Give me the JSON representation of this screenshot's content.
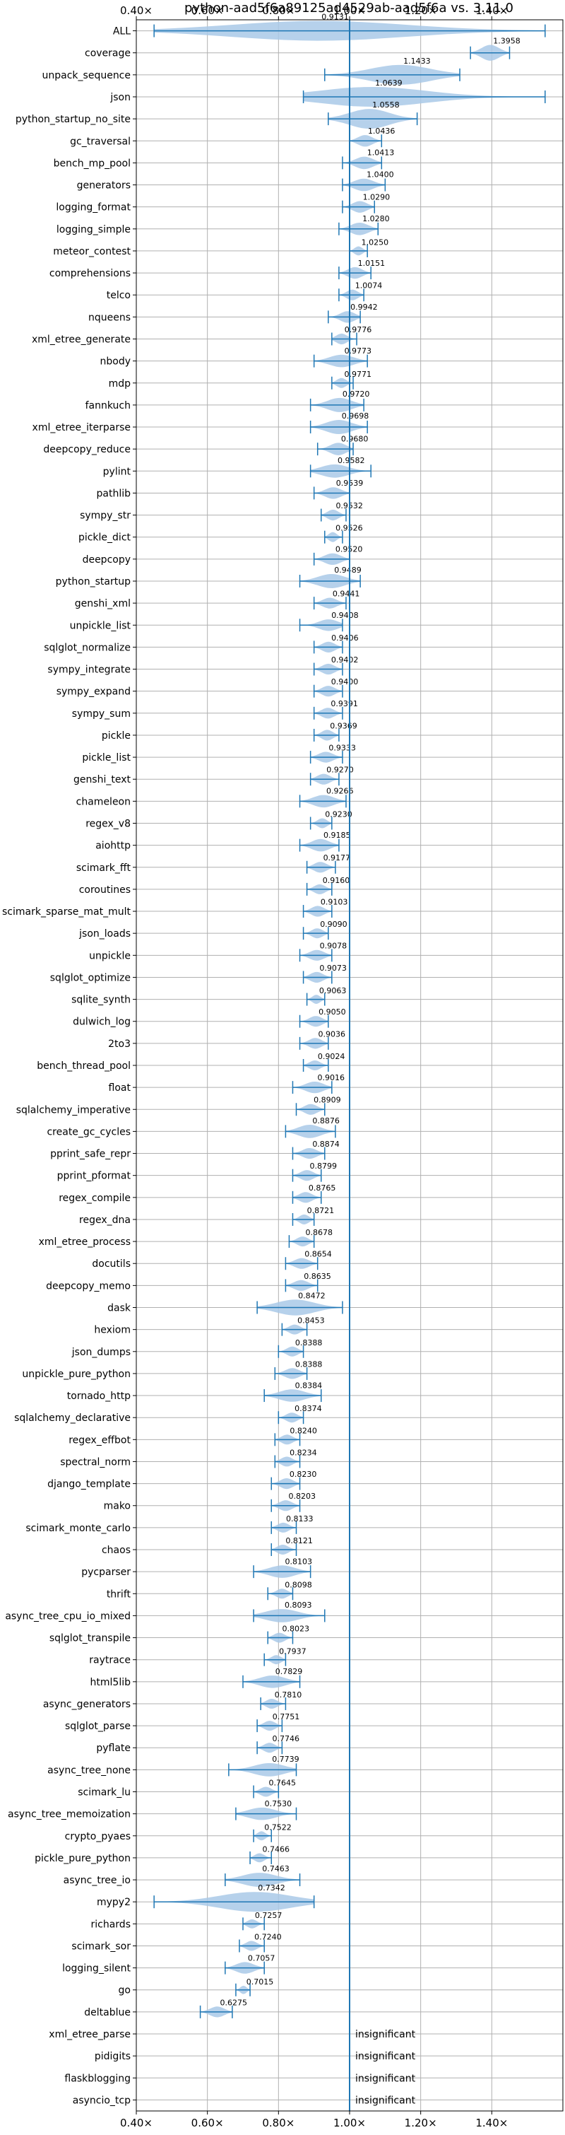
{
  "chart_data": {
    "type": "violin",
    "title": "python-aad5f6a89125ad4529ab-aad5f6a vs. 3.11.0",
    "x_ticks": [
      "0.40×",
      "0.60×",
      "0.80×",
      "1.00×",
      "1.20×",
      "1.40×"
    ],
    "x_tick_values": [
      0.4,
      0.6,
      0.8,
      1.0,
      1.2,
      1.4
    ],
    "xlim": [
      0.4,
      1.6
    ],
    "reference_line": 1.0,
    "grid": true,
    "colors": {
      "violin": "#a9c9e8",
      "line": "#1f77b4",
      "grid": "#b0b0b0"
    },
    "insignificant_text": "insignificant",
    "rows": [
      {
        "name": "ALL",
        "value": 0.9131,
        "min": 0.45,
        "max": 1.55,
        "width": 0.55
      },
      {
        "name": "coverage",
        "value": 1.3958,
        "min": 1.34,
        "max": 1.45,
        "width": 0.12
      },
      {
        "name": "unpack_sequence",
        "value": 1.1433,
        "min": 0.93,
        "max": 1.31,
        "width": 0.3
      },
      {
        "name": "json",
        "value": 1.0639,
        "min": 0.87,
        "max": 1.55,
        "width": 0.35
      },
      {
        "name": "python_startup_no_site",
        "value": 1.0558,
        "min": 0.94,
        "max": 1.19,
        "width": 0.2
      },
      {
        "name": "gc_traversal",
        "value": 1.0436,
        "min": 1.0,
        "max": 1.09,
        "width": 0.07
      },
      {
        "name": "bench_mp_pool",
        "value": 1.0413,
        "min": 0.98,
        "max": 1.09,
        "width": 0.08
      },
      {
        "name": "generators",
        "value": 1.04,
        "min": 0.98,
        "max": 1.1,
        "width": 0.08
      },
      {
        "name": "logging_format",
        "value": 1.029,
        "min": 0.98,
        "max": 1.07,
        "width": 0.07
      },
      {
        "name": "logging_simple",
        "value": 1.028,
        "min": 0.97,
        "max": 1.08,
        "width": 0.08
      },
      {
        "name": "meteor_contest",
        "value": 1.025,
        "min": 1.0,
        "max": 1.05,
        "width": 0.04
      },
      {
        "name": "comprehensions",
        "value": 1.0151,
        "min": 0.97,
        "max": 1.06,
        "width": 0.07
      },
      {
        "name": "telco",
        "value": 1.0074,
        "min": 0.97,
        "max": 1.04,
        "width": 0.06
      },
      {
        "name": "nqueens",
        "value": 0.9942,
        "min": 0.94,
        "max": 1.03,
        "width": 0.07
      },
      {
        "name": "xml_etree_generate",
        "value": 0.9776,
        "min": 0.95,
        "max": 1.02,
        "width": 0.06
      },
      {
        "name": "nbody",
        "value": 0.9773,
        "min": 0.9,
        "max": 1.05,
        "width": 0.08
      },
      {
        "name": "mdp",
        "value": 0.9771,
        "min": 0.95,
        "max": 1.01,
        "width": 0.05
      },
      {
        "name": "fannkuch",
        "value": 0.972,
        "min": 0.89,
        "max": 1.04,
        "width": 0.1
      },
      {
        "name": "xml_etree_iterparse",
        "value": 0.9698,
        "min": 0.89,
        "max": 1.05,
        "width": 0.1
      },
      {
        "name": "deepcopy_reduce",
        "value": 0.968,
        "min": 0.91,
        "max": 1.01,
        "width": 0.08
      },
      {
        "name": "pylint",
        "value": 0.9582,
        "min": 0.89,
        "max": 1.06,
        "width": 0.09
      },
      {
        "name": "pathlib",
        "value": 0.9539,
        "min": 0.9,
        "max": 1.0,
        "width": 0.07
      },
      {
        "name": "sympy_str",
        "value": 0.9532,
        "min": 0.92,
        "max": 0.99,
        "width": 0.06
      },
      {
        "name": "pickle_dict",
        "value": 0.9526,
        "min": 0.93,
        "max": 0.98,
        "width": 0.05
      },
      {
        "name": "deepcopy",
        "value": 0.952,
        "min": 0.9,
        "max": 1.0,
        "width": 0.07
      },
      {
        "name": "python_startup",
        "value": 0.9489,
        "min": 0.86,
        "max": 1.03,
        "width": 0.1
      },
      {
        "name": "genshi_xml",
        "value": 0.9441,
        "min": 0.9,
        "max": 0.99,
        "width": 0.06
      },
      {
        "name": "unpickle_list",
        "value": 0.9408,
        "min": 0.86,
        "max": 0.98,
        "width": 0.07
      },
      {
        "name": "sqlglot_normalize",
        "value": 0.9406,
        "min": 0.9,
        "max": 0.98,
        "width": 0.06
      },
      {
        "name": "sympy_integrate",
        "value": 0.9402,
        "min": 0.9,
        "max": 0.98,
        "width": 0.06
      },
      {
        "name": "sympy_expand",
        "value": 0.94,
        "min": 0.9,
        "max": 0.98,
        "width": 0.06
      },
      {
        "name": "sympy_sum",
        "value": 0.9391,
        "min": 0.9,
        "max": 0.98,
        "width": 0.06
      },
      {
        "name": "pickle",
        "value": 0.9369,
        "min": 0.9,
        "max": 0.97,
        "width": 0.06
      },
      {
        "name": "pickle_list",
        "value": 0.9333,
        "min": 0.89,
        "max": 0.98,
        "width": 0.06
      },
      {
        "name": "genshi_text",
        "value": 0.927,
        "min": 0.89,
        "max": 0.97,
        "width": 0.06
      },
      {
        "name": "chameleon",
        "value": 0.9266,
        "min": 0.86,
        "max": 0.99,
        "width": 0.08
      },
      {
        "name": "regex_v8",
        "value": 0.923,
        "min": 0.89,
        "max": 0.95,
        "width": 0.05
      },
      {
        "name": "aiohttp",
        "value": 0.9185,
        "min": 0.86,
        "max": 0.97,
        "width": 0.08
      },
      {
        "name": "scimark_fft",
        "value": 0.9177,
        "min": 0.88,
        "max": 0.96,
        "width": 0.06
      },
      {
        "name": "coroutines",
        "value": 0.916,
        "min": 0.88,
        "max": 0.95,
        "width": 0.05
      },
      {
        "name": "scimark_sparse_mat_mult",
        "value": 0.9103,
        "min": 0.87,
        "max": 0.95,
        "width": 0.06
      },
      {
        "name": "json_loads",
        "value": 0.909,
        "min": 0.87,
        "max": 0.94,
        "width": 0.05
      },
      {
        "name": "unpickle",
        "value": 0.9078,
        "min": 0.86,
        "max": 0.95,
        "width": 0.06
      },
      {
        "name": "sqlglot_optimize",
        "value": 0.9073,
        "min": 0.87,
        "max": 0.95,
        "width": 0.06
      },
      {
        "name": "sqlite_synth",
        "value": 0.9063,
        "min": 0.88,
        "max": 0.93,
        "width": 0.04
      },
      {
        "name": "dulwich_log",
        "value": 0.905,
        "min": 0.86,
        "max": 0.94,
        "width": 0.06
      },
      {
        "name": "2to3",
        "value": 0.9036,
        "min": 0.86,
        "max": 0.94,
        "width": 0.06
      },
      {
        "name": "bench_thread_pool",
        "value": 0.9024,
        "min": 0.87,
        "max": 0.94,
        "width": 0.05
      },
      {
        "name": "float",
        "value": 0.9016,
        "min": 0.84,
        "max": 0.95,
        "width": 0.07
      },
      {
        "name": "sqlalchemy_imperative",
        "value": 0.8909,
        "min": 0.85,
        "max": 0.93,
        "width": 0.06
      },
      {
        "name": "create_gc_cycles",
        "value": 0.8876,
        "min": 0.82,
        "max": 0.96,
        "width": 0.09
      },
      {
        "name": "pprint_safe_repr",
        "value": 0.8874,
        "min": 0.84,
        "max": 0.93,
        "width": 0.06
      },
      {
        "name": "pprint_pformat",
        "value": 0.8799,
        "min": 0.84,
        "max": 0.92,
        "width": 0.06
      },
      {
        "name": "regex_compile",
        "value": 0.8765,
        "min": 0.84,
        "max": 0.92,
        "width": 0.06
      },
      {
        "name": "regex_dna",
        "value": 0.8721,
        "min": 0.84,
        "max": 0.9,
        "width": 0.05
      },
      {
        "name": "xml_etree_process",
        "value": 0.8678,
        "min": 0.83,
        "max": 0.9,
        "width": 0.05
      },
      {
        "name": "docutils",
        "value": 0.8654,
        "min": 0.82,
        "max": 0.91,
        "width": 0.06
      },
      {
        "name": "deepcopy_memo",
        "value": 0.8635,
        "min": 0.82,
        "max": 0.91,
        "width": 0.06
      },
      {
        "name": "dask",
        "value": 0.8472,
        "min": 0.74,
        "max": 0.98,
        "width": 0.12
      },
      {
        "name": "hexiom",
        "value": 0.8453,
        "min": 0.81,
        "max": 0.88,
        "width": 0.05
      },
      {
        "name": "json_dumps",
        "value": 0.8388,
        "min": 0.8,
        "max": 0.87,
        "width": 0.05
      },
      {
        "name": "unpickle_pure_python",
        "value": 0.8388,
        "min": 0.79,
        "max": 0.88,
        "width": 0.06
      },
      {
        "name": "tornado_http",
        "value": 0.8384,
        "min": 0.76,
        "max": 0.92,
        "width": 0.08
      },
      {
        "name": "sqlalchemy_declarative",
        "value": 0.8374,
        "min": 0.8,
        "max": 0.87,
        "width": 0.05
      },
      {
        "name": "regex_effbot",
        "value": 0.824,
        "min": 0.79,
        "max": 0.86,
        "width": 0.05
      },
      {
        "name": "spectral_norm",
        "value": 0.8234,
        "min": 0.79,
        "max": 0.86,
        "width": 0.05
      },
      {
        "name": "django_template",
        "value": 0.823,
        "min": 0.78,
        "max": 0.86,
        "width": 0.06
      },
      {
        "name": "mako",
        "value": 0.8203,
        "min": 0.78,
        "max": 0.86,
        "width": 0.06
      },
      {
        "name": "scimark_monte_carlo",
        "value": 0.8133,
        "min": 0.78,
        "max": 0.85,
        "width": 0.05
      },
      {
        "name": "chaos",
        "value": 0.8121,
        "min": 0.78,
        "max": 0.85,
        "width": 0.05
      },
      {
        "name": "pycparser",
        "value": 0.8103,
        "min": 0.73,
        "max": 0.89,
        "width": 0.08
      },
      {
        "name": "thrift",
        "value": 0.8098,
        "min": 0.77,
        "max": 0.84,
        "width": 0.05
      },
      {
        "name": "async_tree_cpu_io_mixed",
        "value": 0.8093,
        "min": 0.73,
        "max": 0.93,
        "width": 0.09
      },
      {
        "name": "sqlglot_transpile",
        "value": 0.8023,
        "min": 0.77,
        "max": 0.84,
        "width": 0.05
      },
      {
        "name": "raytrace",
        "value": 0.7937,
        "min": 0.76,
        "max": 0.82,
        "width": 0.04
      },
      {
        "name": "html5lib",
        "value": 0.7829,
        "min": 0.7,
        "max": 0.86,
        "width": 0.08
      },
      {
        "name": "async_generators",
        "value": 0.781,
        "min": 0.75,
        "max": 0.82,
        "width": 0.05
      },
      {
        "name": "sqlglot_parse",
        "value": 0.7751,
        "min": 0.74,
        "max": 0.81,
        "width": 0.05
      },
      {
        "name": "pyflate",
        "value": 0.7746,
        "min": 0.74,
        "max": 0.81,
        "width": 0.05
      },
      {
        "name": "async_tree_none",
        "value": 0.7739,
        "min": 0.66,
        "max": 0.85,
        "width": 0.09
      },
      {
        "name": "scimark_lu",
        "value": 0.7645,
        "min": 0.73,
        "max": 0.8,
        "width": 0.05
      },
      {
        "name": "async_tree_memoization",
        "value": 0.753,
        "min": 0.68,
        "max": 0.85,
        "width": 0.08
      },
      {
        "name": "crypto_pyaes",
        "value": 0.7522,
        "min": 0.73,
        "max": 0.78,
        "width": 0.04
      },
      {
        "name": "pickle_pure_python",
        "value": 0.7466,
        "min": 0.72,
        "max": 0.78,
        "width": 0.04
      },
      {
        "name": "async_tree_io",
        "value": 0.7463,
        "min": 0.65,
        "max": 0.86,
        "width": 0.1
      },
      {
        "name": "mypy2",
        "value": 0.7342,
        "min": 0.45,
        "max": 0.9,
        "width": 0.18
      },
      {
        "name": "richards",
        "value": 0.7257,
        "min": 0.7,
        "max": 0.76,
        "width": 0.04
      },
      {
        "name": "scimark_sor",
        "value": 0.724,
        "min": 0.69,
        "max": 0.76,
        "width": 0.05
      },
      {
        "name": "logging_silent",
        "value": 0.7057,
        "min": 0.65,
        "max": 0.76,
        "width": 0.07
      },
      {
        "name": "go",
        "value": 0.7015,
        "min": 0.68,
        "max": 0.72,
        "width": 0.03
      },
      {
        "name": "deltablue",
        "value": 0.6275,
        "min": 0.58,
        "max": 0.67,
        "width": 0.06
      },
      {
        "name": "xml_etree_parse",
        "insignificant": true
      },
      {
        "name": "pidigits",
        "insignificant": true
      },
      {
        "name": "flaskblogging",
        "insignificant": true
      },
      {
        "name": "asyncio_tcp",
        "insignificant": true
      }
    ]
  }
}
